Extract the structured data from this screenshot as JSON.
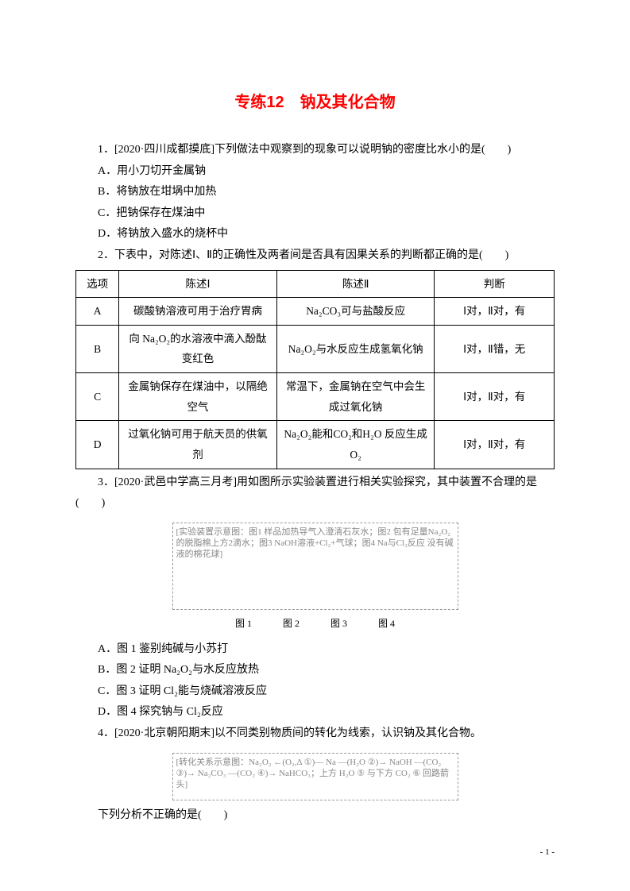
{
  "title": "专练12　钠及其化合物",
  "q1": {
    "stem": "1．[2020·四川成都摸底]下列做法中观察到的现象可以说明钠的密度比水小的是(　　)",
    "A": "A．用小刀切开金属钠",
    "B": "B．将钠放在坩埚中加热",
    "C": "C．把钠保存在煤油中",
    "D": "D．将钠放入盛水的烧杯中"
  },
  "q2": {
    "stem": "2．下表中，对陈述Ⅰ、Ⅱ的正确性及两者间是否具有因果关系的判断都正确的是(　　)",
    "table": {
      "columns": [
        "选项",
        "陈述Ⅰ",
        "陈述Ⅱ",
        "判断"
      ],
      "col_widths": [
        "9%",
        "33%",
        "33%",
        "25%"
      ],
      "rows": [
        [
          "A",
          "碳酸钠溶液可用于治疗胃病",
          "Na₂CO₃可与盐酸反应",
          "Ⅰ对，Ⅱ对，有"
        ],
        [
          "B",
          "向 Na₂O₂的水溶液中滴入酚酞变红色",
          "Na₂O₂与水反应生成氢氧化钠",
          "Ⅰ对，Ⅱ错，无"
        ],
        [
          "C",
          "金属钠保存在煤油中，以隔绝空气",
          "常温下，金属钠在空气中会生成过氧化钠",
          "Ⅰ对，Ⅱ对，有"
        ],
        [
          "D",
          "过氧化钠可用于航天员的供氧剂",
          "Na₂O₂能和CO₂和H₂O 反应生成O₂",
          "Ⅰ对，Ⅱ对，有"
        ]
      ]
    }
  },
  "q3": {
    "stem": "3．[2020·武邑中学高三月考]用如图所示实验装置进行相关实验探究，其中装置不合理的是(　　)",
    "fig_desc": "[实验装置示意图：图1 样品加热导气入澄清石灰水；图2 包有足量Na₂O₂的脱脂棉上方2滴水；图3 NaOH溶液+Cl₂+气球；图4 Na与Cl₂反应 没有碱液的棉花球]",
    "fig_labels": [
      "图 1",
      "图 2",
      "图 3",
      "图 4"
    ],
    "A": "A．图 1 鉴别纯碱与小苏打",
    "B": "B．图 2 证明 Na₂O₂与水反应放热",
    "C": "C．图 3 证明 Cl₂能与烧碱溶液反应",
    "D": "D．图 4 探究钠与 Cl₂反应"
  },
  "q4": {
    "stem": "4．[2020·北京朝阳期末]以不同类别物质间的转化为线索，认识钠及其化合物。",
    "fig_desc": "[转化关系示意图：Na₂O₂ ←(O₂,Δ ①)— Na —(H₂O ②)→ NaOH —(CO₂ ③)→ Na₂CO₃ —(CO₂ ④)→ NaHCO₃；上方 H₂O ⑤ 与下方 CO₂ ⑥ 回路箭头]",
    "tail": "下列分析不正确的是(　　)"
  },
  "page_num": "- 1 -",
  "style": {
    "title_color": "#ff0000",
    "body_color": "#000000",
    "background": "#ffffff",
    "font_family": "SimSun",
    "title_fontsize_pt": 15,
    "body_fontsize_pt": 10.5
  }
}
